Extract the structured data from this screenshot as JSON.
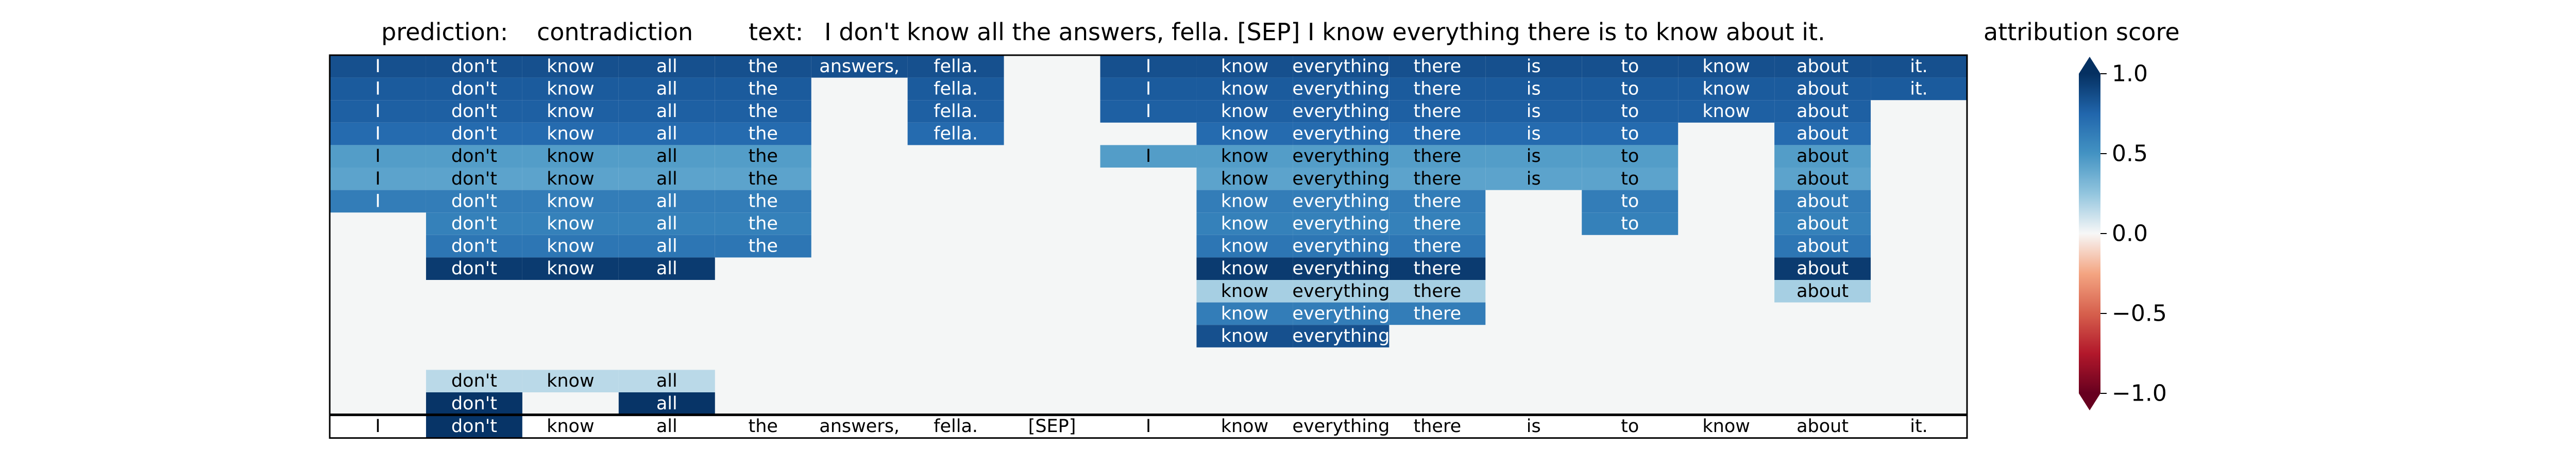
{
  "figure": {
    "prediction_label": "prediction:",
    "prediction_value": "contradiction",
    "text_label": "text:",
    "text_value": "I don't know all the answers, fella. [SEP] I know everything there is to know about it.",
    "colorbar_title": "attribution score"
  },
  "chart_data": {
    "type": "heatmap",
    "tokens": [
      "I",
      "don't",
      "know",
      "all",
      "the",
      "answers,",
      "fella.",
      "[SEP]",
      "I",
      "know",
      "everything",
      "there",
      "is",
      "to",
      "know",
      "about",
      "it."
    ],
    "colorbar": {
      "ticks": [
        1.0,
        0.5,
        0.0,
        -0.5,
        -1.0
      ],
      "tick_labels": [
        "1.0",
        "0.5",
        "0.0",
        "−0.5",
        "−1.0"
      ],
      "vmin": -1.0,
      "vmax": 1.0,
      "colormap": "RdBu"
    },
    "rows": [
      [
        0.85,
        0.85,
        0.85,
        0.85,
        0.85,
        0.85,
        0.85,
        null,
        0.85,
        0.85,
        0.85,
        0.85,
        0.85,
        0.85,
        0.85,
        0.85,
        0.85
      ],
      [
        0.8,
        0.8,
        0.8,
        0.8,
        0.8,
        null,
        0.8,
        null,
        0.8,
        0.8,
        0.8,
        0.8,
        0.8,
        0.8,
        0.8,
        0.8,
        0.8
      ],
      [
        0.78,
        0.78,
        0.78,
        0.78,
        0.78,
        null,
        0.78,
        null,
        0.78,
        0.78,
        0.78,
        0.78,
        0.78,
        0.78,
        0.78,
        0.78,
        null
      ],
      [
        0.72,
        0.72,
        0.72,
        0.72,
        0.72,
        null,
        0.72,
        null,
        null,
        0.72,
        0.72,
        0.72,
        0.72,
        0.72,
        null,
        0.72,
        null
      ],
      [
        0.45,
        0.45,
        0.45,
        0.45,
        0.45,
        null,
        null,
        null,
        0.45,
        0.45,
        0.45,
        0.45,
        0.45,
        0.45,
        null,
        0.45,
        null
      ],
      [
        0.42,
        0.42,
        0.42,
        0.42,
        0.42,
        null,
        null,
        null,
        null,
        0.42,
        0.42,
        0.42,
        0.42,
        0.42,
        null,
        0.42,
        null
      ],
      [
        0.62,
        0.62,
        0.62,
        0.62,
        0.62,
        null,
        null,
        null,
        null,
        0.62,
        0.62,
        0.62,
        null,
        0.62,
        null,
        0.62,
        null
      ],
      [
        null,
        0.6,
        0.6,
        0.6,
        0.6,
        null,
        null,
        null,
        null,
        0.6,
        0.6,
        0.6,
        null,
        0.6,
        null,
        0.6,
        null
      ],
      [
        null,
        0.66,
        0.66,
        0.66,
        0.66,
        null,
        null,
        null,
        null,
        0.66,
        0.66,
        0.66,
        null,
        null,
        null,
        0.66,
        null
      ],
      [
        null,
        0.95,
        0.95,
        0.95,
        null,
        null,
        null,
        null,
        null,
        0.95,
        0.95,
        0.95,
        null,
        null,
        null,
        0.95,
        null
      ],
      [
        null,
        null,
        null,
        null,
        null,
        null,
        null,
        null,
        null,
        0.2,
        0.2,
        0.2,
        null,
        null,
        null,
        0.2,
        null
      ],
      [
        null,
        null,
        null,
        null,
        null,
        null,
        null,
        null,
        null,
        0.62,
        0.62,
        0.62,
        null,
        null,
        null,
        null,
        null
      ],
      [
        null,
        null,
        null,
        null,
        null,
        null,
        null,
        null,
        null,
        0.85,
        0.85,
        null,
        null,
        null,
        null,
        null,
        null
      ],
      [
        null,
        null,
        null,
        null,
        null,
        null,
        null,
        null,
        null,
        null,
        null,
        null,
        null,
        null,
        null,
        null,
        null
      ],
      [
        null,
        0.15,
        0.15,
        0.15,
        null,
        null,
        null,
        null,
        null,
        null,
        null,
        null,
        null,
        null,
        null,
        null,
        null
      ],
      [
        null,
        0.98,
        null,
        0.98,
        null,
        null,
        null,
        null,
        null,
        null,
        null,
        null,
        null,
        null,
        null,
        null,
        null
      ]
    ],
    "bottom_row": [
      0.0,
      0.98,
      0.0,
      0.0,
      0.0,
      0.0,
      0.0,
      0.0,
      0.0,
      0.0,
      0.0,
      0.0,
      0.0,
      0.0,
      0.0,
      0.0,
      0.0
    ]
  }
}
